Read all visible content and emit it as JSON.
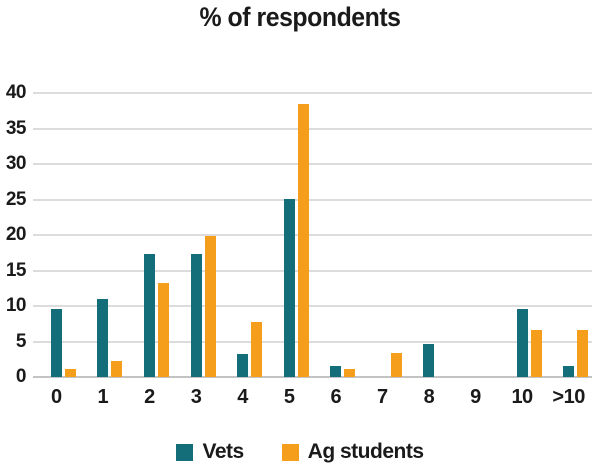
{
  "chart_data": {
    "type": "bar",
    "title": "% of respondents",
    "categories": [
      "0",
      "1",
      "2",
      "3",
      "4",
      "5",
      "6",
      "7",
      "8",
      "9",
      "10",
      ">10"
    ],
    "series": [
      {
        "name": "Vets",
        "color": "#146E7A",
        "values": [
          9.6,
          11.0,
          17.3,
          17.3,
          3.2,
          25.1,
          1.6,
          0,
          4.7,
          0,
          9.6,
          1.6
        ]
      },
      {
        "name": "Ag students",
        "color": "#F49E1B",
        "values": [
          1.1,
          2.3,
          13.2,
          19.9,
          7.7,
          38.5,
          1.1,
          3.4,
          0,
          0,
          6.6,
          6.6
        ]
      }
    ],
    "xlabel": "",
    "ylabel": "",
    "ylim": [
      0,
      40
    ],
    "yticks": [
      0,
      5,
      10,
      15,
      20,
      25,
      30,
      35,
      40
    ],
    "grid": true,
    "legend_position": "bottom"
  },
  "colors": {
    "gridline": "#DCDCDC",
    "axis_line": "#C3C3C3",
    "text": "#1A1A1A",
    "background": "#FFFFFF"
  }
}
